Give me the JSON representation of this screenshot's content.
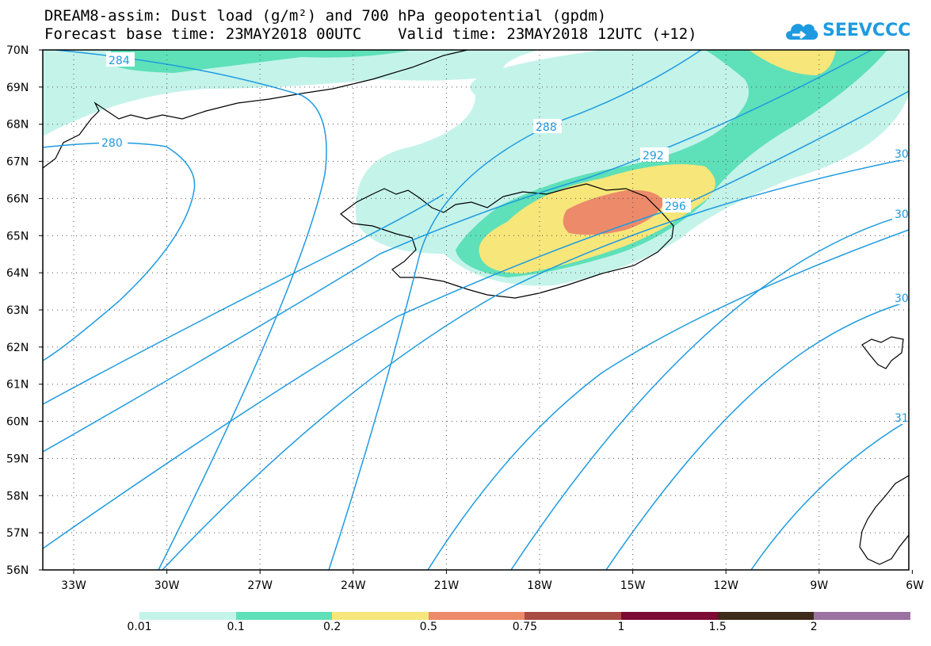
{
  "header": {
    "title_line1": "DREAM8-assim: Dust load (g/m²) and 700 hPa geopotential (gpdm)",
    "title_line2": "Forecast base time: 23MAY2018 00UTC    Valid time: 23MAY2018 12UTC (+12)",
    "logo_text": "SEEVCCC",
    "logo_icon": "cloud-arrow-icon",
    "logo_color": "#1e9be0"
  },
  "axes": {
    "lat_labels": [
      "70N",
      "69N",
      "68N",
      "67N",
      "66N",
      "65N",
      "64N",
      "63N",
      "62N",
      "61N",
      "60N",
      "59N",
      "58N",
      "57N",
      "56N"
    ],
    "lon_labels": [
      "33W",
      "30W",
      "27W",
      "24W",
      "21W",
      "18W",
      "15W",
      "12W",
      "9W",
      "6W"
    ],
    "lat_range": [
      56,
      70
    ],
    "lon_range": [
      -34.5,
      -6
    ]
  },
  "contours": {
    "line_color": "#1e9be0",
    "labels": [
      "284",
      "280",
      "288",
      "292",
      "296",
      "30",
      "30",
      "30",
      "31"
    ]
  },
  "legend": {
    "colors": [
      "#c4f3ea",
      "#5ee0b8",
      "#f7e67a",
      "#ec8a6a",
      "#a84c44",
      "#7d0b33",
      "#3c2a1a",
      "#9b72a2"
    ],
    "labels": [
      "0.01",
      "0.1",
      "0.2",
      "0.5",
      "0.75",
      "1",
      "1.5",
      "2"
    ]
  }
}
